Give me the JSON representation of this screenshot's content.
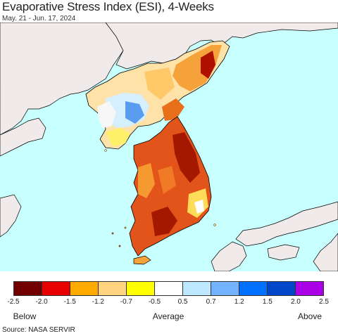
{
  "header": {
    "title": "Evaporative Stress Index (ESI), 4-Weeks",
    "date_range": "May. 21 - Jun. 17, 2024"
  },
  "map": {
    "sea_color": "#c8ffff",
    "land_color": "#f0eaea",
    "border_color": "#000000"
  },
  "legend": {
    "colors": [
      "#730000",
      "#e60000",
      "#ffaa00",
      "#ffd37f",
      "#ffff00",
      "#ffffff",
      "#bee8ff",
      "#73b2ff",
      "#0070ff",
      "#0046c8",
      "#aa00e6"
    ],
    "ticks": [
      "-2.5",
      "-2.0",
      "-1.5",
      "-1.2",
      "-0.7",
      "-0.5",
      "0.5",
      "0.7",
      "1.2",
      "1.5",
      "2.0",
      "2.5"
    ],
    "below_label": "Below",
    "average_label": "Average",
    "above_label": "Above"
  },
  "footer": {
    "source": "Source: NASA SERVIR"
  }
}
